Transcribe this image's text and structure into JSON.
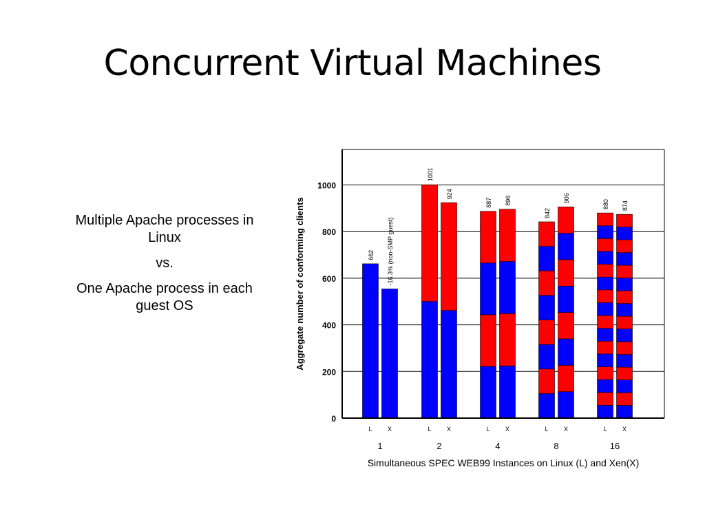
{
  "slide": {
    "title": "Concurrent Virtual Machines",
    "notes": [
      "Multiple Apache processes in Linux",
      "vs.",
      "One Apache process in each guest OS"
    ]
  },
  "chart_data": {
    "type": "bar",
    "stacked": true,
    "xlabel": "Simultaneous SPEC WEB99 Instances on Linux (L) and Xen(X)",
    "ylabel": "Aggregate number of conforming clients",
    "ylim": [
      0,
      1150
    ],
    "yticks": [
      0,
      200,
      400,
      600,
      800,
      1000
    ],
    "grid": "horizontal",
    "colors": {
      "blue": "#0000ff",
      "red": "#ff0000"
    },
    "groups": [
      {
        "label": "1",
        "bars": [
          {
            "label": "L",
            "total": 662,
            "data_label": "662",
            "segments": 1
          },
          {
            "label": "X",
            "total": 554,
            "data_label": "-16.3% (non-SMP guest)",
            "segments": 1
          }
        ]
      },
      {
        "label": "2",
        "bars": [
          {
            "label": "L",
            "total": 1001,
            "data_label": "1001",
            "segments": 2
          },
          {
            "label": "X",
            "total": 924,
            "data_label": "924",
            "segments": 2
          }
        ]
      },
      {
        "label": "4",
        "bars": [
          {
            "label": "L",
            "total": 887,
            "data_label": "887",
            "segments": 4
          },
          {
            "label": "X",
            "total": 896,
            "data_label": "896",
            "segments": 4
          }
        ]
      },
      {
        "label": "8",
        "bars": [
          {
            "label": "L",
            "total": 842,
            "data_label": "842",
            "segments": 8
          },
          {
            "label": "X",
            "total": 906,
            "data_label": "906",
            "segments": 8
          }
        ]
      },
      {
        "label": "16",
        "bars": [
          {
            "label": "L",
            "total": 880,
            "data_label": "880",
            "segments": 16
          },
          {
            "label": "X",
            "total": 874,
            "data_label": "874",
            "segments": 16
          }
        ]
      }
    ]
  }
}
